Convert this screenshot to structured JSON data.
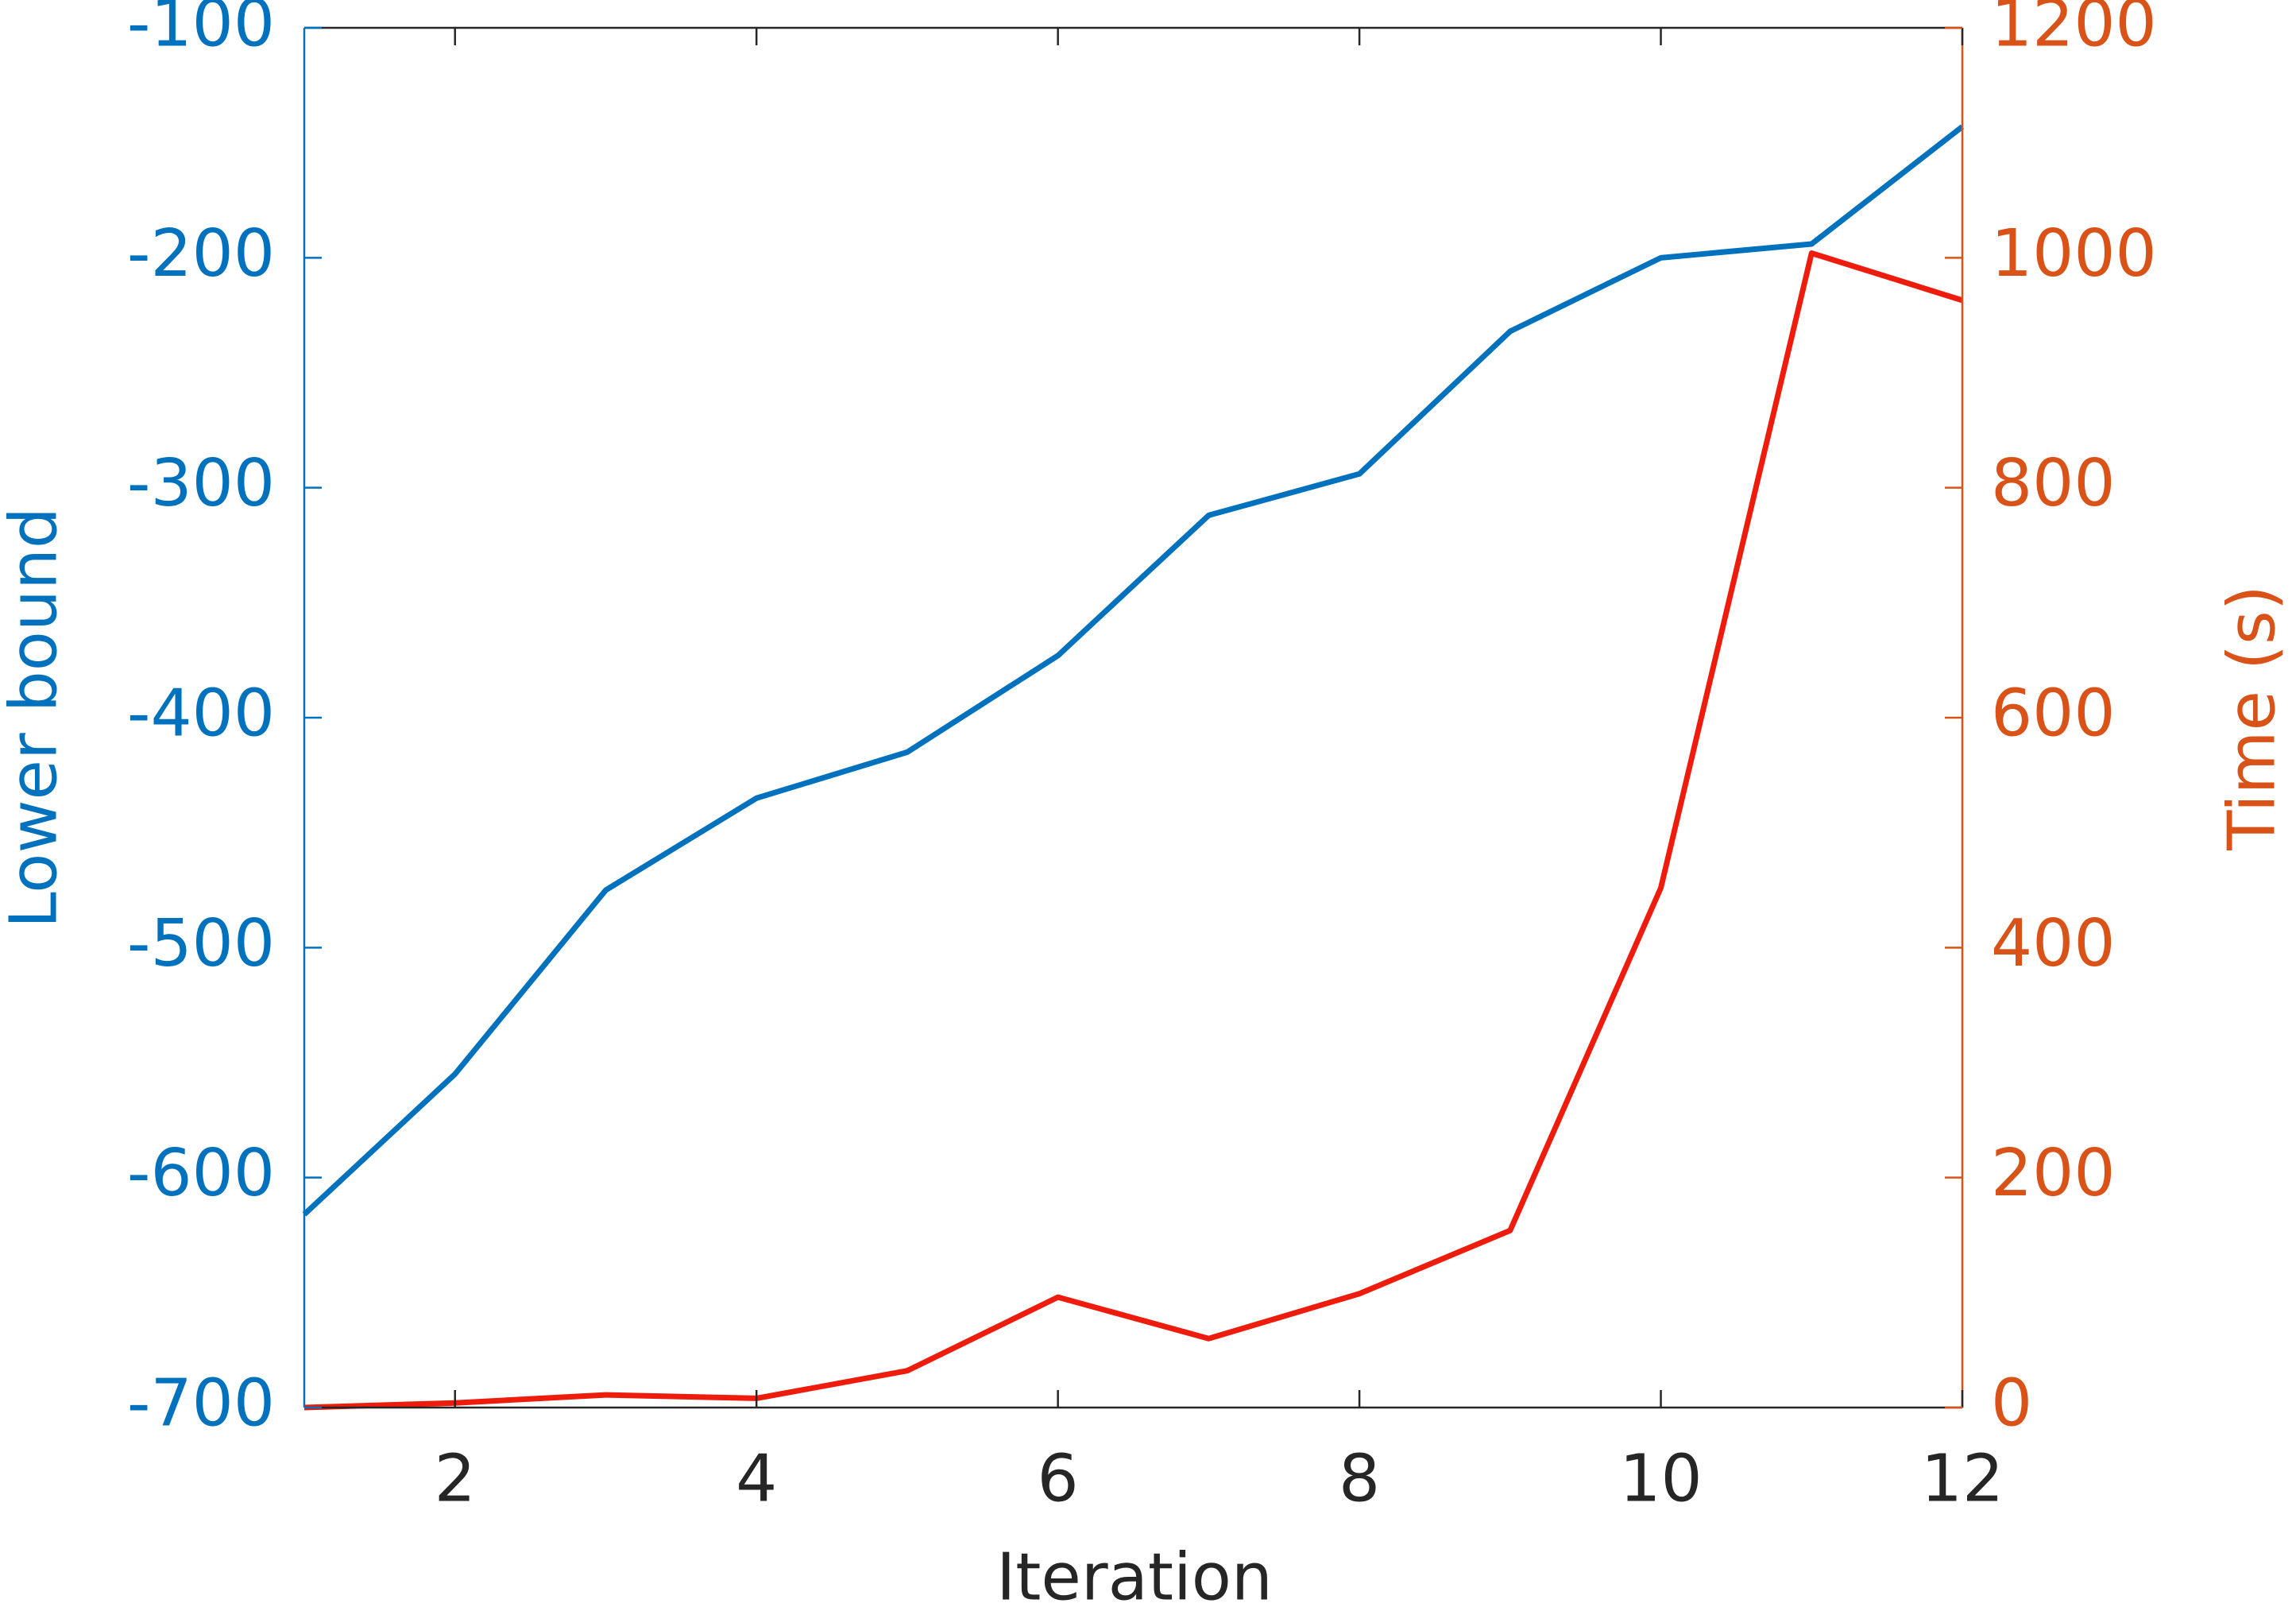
{
  "chart_data": {
    "type": "line",
    "x_label": "Iteration",
    "y_label": "Lower bound",
    "y2_label": "Time (s)",
    "x": [
      1,
      2,
      3,
      4,
      5,
      6,
      7,
      8,
      9,
      10,
      11,
      12
    ],
    "series": [
      {
        "name": "Lower bound",
        "color": "#0072bd",
        "values": [
          -616,
          -555,
          -475,
          -435,
          -415,
          -373,
          -312,
          -294,
          -232,
          -200,
          -194,
          -143
        ]
      },
      {
        "name": "Time",
        "color": "#ee1c0c",
        "axis": "y2",
        "values": [
          0,
          4,
          11,
          8,
          32,
          96,
          60,
          99,
          154,
          452,
          1004,
          963
        ]
      }
    ],
    "xlim": [
      1,
      12
    ],
    "xticks": [
      2,
      4,
      6,
      8,
      10,
      12
    ],
    "ylim": [
      -700,
      -100
    ],
    "yticks": [
      -700,
      -600,
      -500,
      -400,
      -300,
      -200,
      -100
    ],
    "y2lim": [
      0,
      1200
    ],
    "y2ticks": [
      0,
      200,
      400,
      600,
      800,
      1000,
      1200
    ],
    "y_color": "#0072bd",
    "y2_color": "#d95319"
  }
}
